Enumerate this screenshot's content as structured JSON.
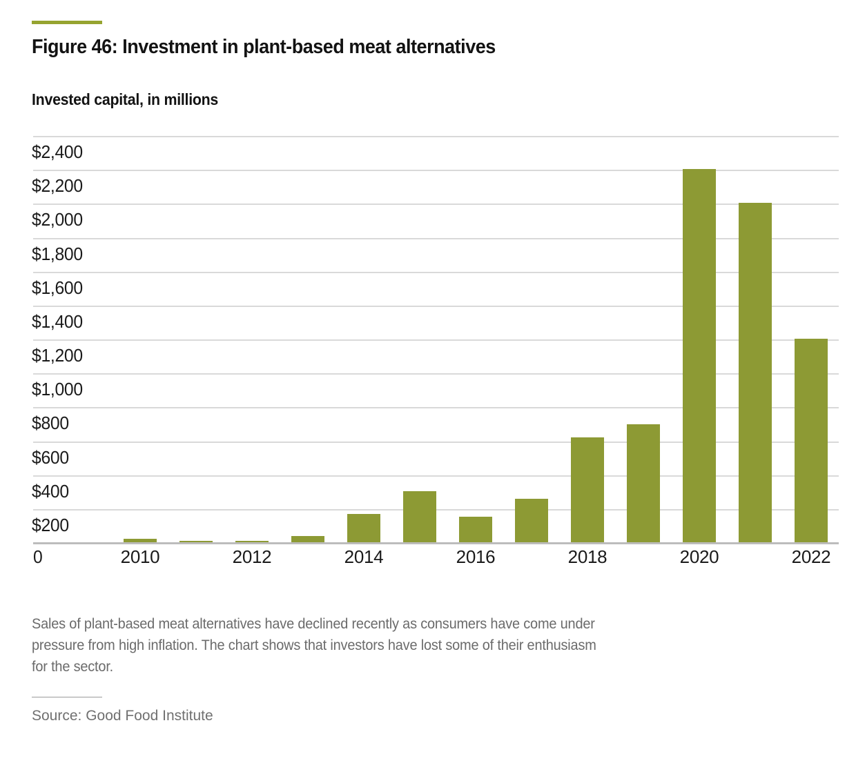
{
  "page": {
    "accent_color": "#96a430",
    "background": "#ffffff"
  },
  "header": {
    "title": "Figure 46: Investment in plant-based meat alternatives",
    "subtitle": "Invested capital, in millions"
  },
  "caption": {
    "lines": [
      "Sales of plant-based meat alternatives have declined recently as consumers have come under",
      "pressure from high inflation. The chart shows that investors have lost some of their enthusiasm",
      "for the sector."
    ]
  },
  "source": {
    "label": "Source: Good Food Institute"
  },
  "chart_data": {
    "type": "bar",
    "title": "Invested capital, in millions",
    "unit": "USD millions",
    "categories": [
      "2010",
      "2011",
      "2012",
      "2013",
      "2014",
      "2015",
      "2016",
      "2017",
      "2018",
      "2019",
      "2020",
      "2021",
      "2022"
    ],
    "values": [
      30,
      10,
      15,
      45,
      175,
      310,
      160,
      265,
      625,
      705,
      2210,
      2010,
      1210
    ],
    "ylim": [
      0,
      2400
    ],
    "ytick_interval": 200,
    "ytick_labels_top_to_bottom": [
      "$2,400",
      "$2,200",
      "$2,000",
      "$1,800",
      "$1,600",
      "$1,400",
      "$1,200",
      "$1,000",
      "$800",
      "$600",
      "$400",
      "$200"
    ],
    "zero_label": "0",
    "xtick_labels": [
      "2010",
      "2012",
      "2014",
      "2016",
      "2018",
      "2020",
      "2022"
    ],
    "grid": true,
    "legend": "none",
    "bar_color": "#8d9a34",
    "gridline_color": "#d9d9d9",
    "axis_line_color": "#bcbcbc",
    "tick_text_color": "#1a1a1a"
  }
}
